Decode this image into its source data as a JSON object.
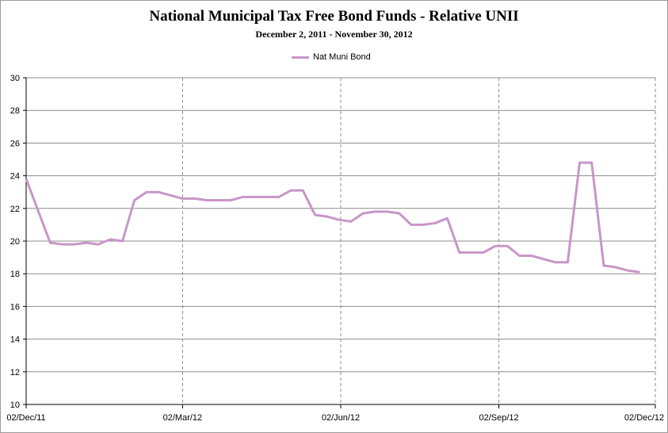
{
  "chart_data": {
    "type": "line",
    "title": "National Municipal Tax Free Bond Funds - Relative UNII",
    "subtitle": "December 2, 2011 - November 30, 2012",
    "xlabel": "",
    "ylabel": "",
    "ylim": [
      10,
      30
    ],
    "yticks": [
      10,
      12,
      14,
      16,
      18,
      20,
      22,
      24,
      26,
      28,
      30
    ],
    "xlim": [
      "2011-12-02",
      "2012-12-02"
    ],
    "xtick_labels": [
      "02/Dec/11",
      "02/Mar/12",
      "02/Jun/12",
      "02/Sep/12",
      "02/Dec/12"
    ],
    "xtick_dates": [
      "2011-12-02",
      "2012-03-02",
      "2012-06-02",
      "2012-09-02",
      "2012-12-02"
    ],
    "grid": "horizontal solid, vertical dashed",
    "legend": "top-center",
    "colors": {
      "series": "#c896c8",
      "grid": "#8c8c8c",
      "axis": "#000000"
    },
    "series": [
      {
        "name": "Nat Muni Bond",
        "points": [
          [
            "2011-12-02",
            23.8
          ],
          [
            "2011-12-16",
            19.9
          ],
          [
            "2011-12-23",
            19.8
          ],
          [
            "2011-12-30",
            19.8
          ],
          [
            "2012-01-06",
            19.9
          ],
          [
            "2012-01-13",
            19.8
          ],
          [
            "2012-01-20",
            20.1
          ],
          [
            "2012-01-27",
            20.0
          ],
          [
            "2012-02-03",
            22.5
          ],
          [
            "2012-02-10",
            23.0
          ],
          [
            "2012-02-17",
            23.0
          ],
          [
            "2012-02-24",
            22.8
          ],
          [
            "2012-03-02",
            22.6
          ],
          [
            "2012-03-09",
            22.6
          ],
          [
            "2012-03-16",
            22.5
          ],
          [
            "2012-03-30",
            22.5
          ],
          [
            "2012-04-06",
            22.7
          ],
          [
            "2012-04-13",
            22.7
          ],
          [
            "2012-04-20",
            22.7
          ],
          [
            "2012-04-27",
            22.7
          ],
          [
            "2012-05-04",
            23.1
          ],
          [
            "2012-05-11",
            23.1
          ],
          [
            "2012-05-18",
            21.6
          ],
          [
            "2012-05-25",
            21.5
          ],
          [
            "2012-06-01",
            21.3
          ],
          [
            "2012-06-08",
            21.2
          ],
          [
            "2012-06-15",
            21.7
          ],
          [
            "2012-06-22",
            21.8
          ],
          [
            "2012-06-29",
            21.8
          ],
          [
            "2012-07-06",
            21.7
          ],
          [
            "2012-07-13",
            21.0
          ],
          [
            "2012-07-20",
            21.0
          ],
          [
            "2012-07-27",
            21.1
          ],
          [
            "2012-08-03",
            21.4
          ],
          [
            "2012-08-10",
            19.3
          ],
          [
            "2012-08-17",
            19.3
          ],
          [
            "2012-08-24",
            19.3
          ],
          [
            "2012-08-31",
            19.7
          ],
          [
            "2012-09-07",
            19.7
          ],
          [
            "2012-09-14",
            19.1
          ],
          [
            "2012-09-21",
            19.1
          ],
          [
            "2012-09-28",
            18.9
          ],
          [
            "2012-10-05",
            18.7
          ],
          [
            "2012-10-12",
            18.7
          ],
          [
            "2012-10-19",
            24.8
          ],
          [
            "2012-10-26",
            24.8
          ],
          [
            "2012-11-02",
            18.5
          ],
          [
            "2012-11-09",
            18.4
          ],
          [
            "2012-11-16",
            18.2
          ],
          [
            "2012-11-23",
            18.1
          ]
        ]
      }
    ]
  }
}
